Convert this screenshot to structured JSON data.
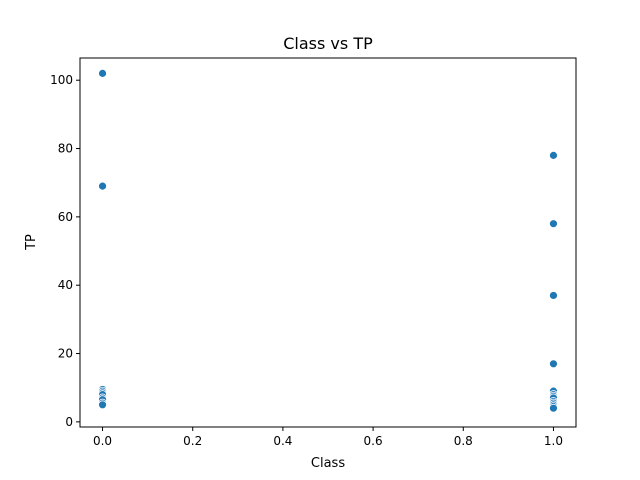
{
  "chart_data": {
    "type": "scatter",
    "title": "Class vs TP",
    "xlabel": "Class",
    "ylabel": "TP",
    "xlim": [
      -0.05,
      1.05
    ],
    "ylim": [
      -1.5,
      106.5
    ],
    "xticks": [
      0.0,
      0.2,
      0.4,
      0.6,
      0.8,
      1.0
    ],
    "xtick_labels": [
      "0.0",
      "0.2",
      "0.4",
      "0.6",
      "0.8",
      "1.0"
    ],
    "yticks": [
      0,
      20,
      40,
      60,
      80,
      100
    ],
    "ytick_labels": [
      "0",
      "20",
      "40",
      "60",
      "80",
      "100"
    ],
    "grid": false,
    "point_color": "#1f77b4",
    "points": [
      {
        "x": 0,
        "y": 102
      },
      {
        "x": 0,
        "y": 69
      },
      {
        "x": 0,
        "y": 9.5
      },
      {
        "x": 0,
        "y": 9
      },
      {
        "x": 0,
        "y": 8.5
      },
      {
        "x": 0,
        "y": 8
      },
      {
        "x": 0,
        "y": 7
      },
      {
        "x": 0,
        "y": 6.5
      },
      {
        "x": 0,
        "y": 5.5
      },
      {
        "x": 0,
        "y": 5
      },
      {
        "x": 1,
        "y": 78
      },
      {
        "x": 1,
        "y": 58
      },
      {
        "x": 1,
        "y": 37
      },
      {
        "x": 1,
        "y": 17
      },
      {
        "x": 1,
        "y": 9
      },
      {
        "x": 1,
        "y": 8
      },
      {
        "x": 1,
        "y": 7.5
      },
      {
        "x": 1,
        "y": 7
      },
      {
        "x": 1,
        "y": 6
      },
      {
        "x": 1,
        "y": 5.5
      },
      {
        "x": 1,
        "y": 5
      },
      {
        "x": 1,
        "y": 4.5
      },
      {
        "x": 1,
        "y": 4
      }
    ]
  }
}
